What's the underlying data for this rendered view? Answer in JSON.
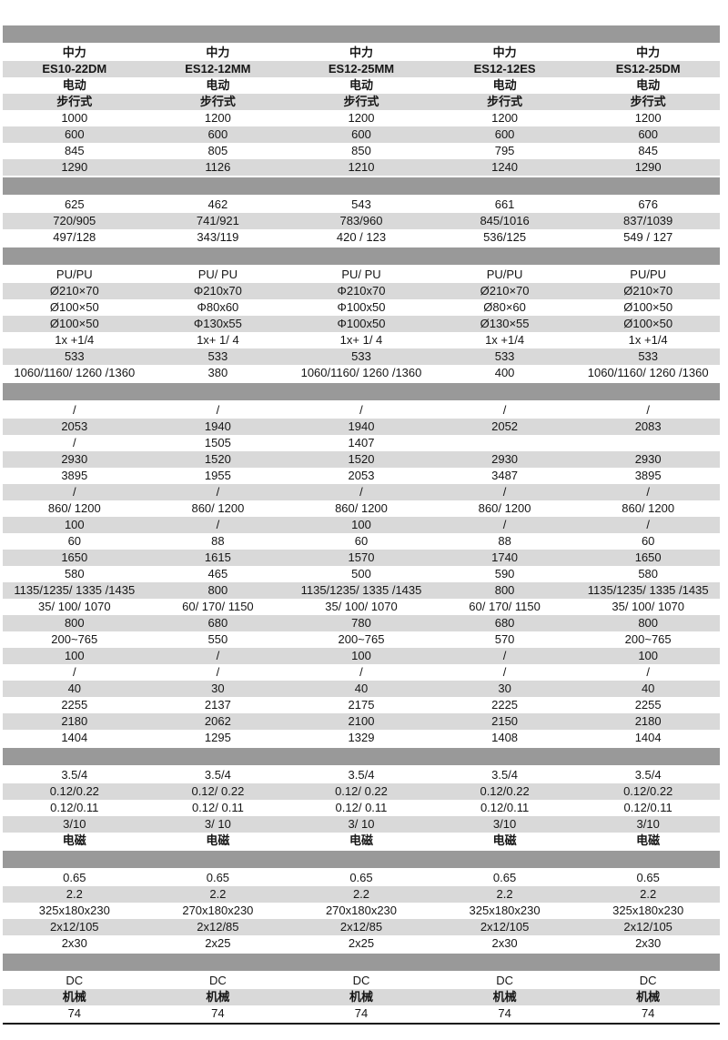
{
  "colors": {
    "separator_bar": "#999999",
    "shaded_row": "#d9d9d9",
    "white_row": "#ffffff",
    "text": "#161616",
    "bottom_line": "#111111"
  },
  "table": {
    "rows": [
      {
        "sep": true
      },
      {
        "bold": true,
        "cells": [
          "中力",
          "中力",
          "中力",
          "中力",
          "中力"
        ]
      },
      {
        "bold": true,
        "cells": [
          "ES10-22DM",
          "ES12-12MM",
          "ES12-25MM",
          "ES12-12ES",
          "ES12-25DM"
        ]
      },
      {
        "bold": true,
        "cells": [
          "电动",
          "电动",
          "电动",
          "电动",
          "电动"
        ]
      },
      {
        "bold": true,
        "cells": [
          "步行式",
          "步行式",
          "步行式",
          "步行式",
          "步行式"
        ]
      },
      {
        "cells": [
          "1000",
          "1200",
          "1200",
          "1200",
          "1200"
        ]
      },
      {
        "cells": [
          "600",
          "600",
          "600",
          "600",
          "600"
        ]
      },
      {
        "cells": [
          "845",
          "805",
          "850",
          "795",
          "845"
        ]
      },
      {
        "cells": [
          "1290",
          "1126",
          "1210",
          "1240",
          "1290"
        ]
      },
      {
        "sep": true
      },
      {
        "cells": [
          "625",
          "462",
          "543",
          "661",
          "676"
        ]
      },
      {
        "cells": [
          "720/905",
          "741/921",
          "783/960",
          "845/1016",
          "837/1039"
        ]
      },
      {
        "cells": [
          "497/128",
          "343/119",
          "420 / 123",
          "536/125",
          "549 / 127"
        ]
      },
      {
        "sep": true
      },
      {
        "cells": [
          "PU/PU",
          "PU/ PU",
          "PU/ PU",
          "PU/PU",
          "PU/PU"
        ]
      },
      {
        "cells": [
          "Ø210×70",
          "Φ210x70",
          "Φ210x70",
          "Ø210×70",
          "Ø210×70"
        ]
      },
      {
        "cells": [
          "Ø100×50",
          "Φ80x60",
          "Φ100x50",
          "Ø80×60",
          "Ø100×50"
        ]
      },
      {
        "cells": [
          "Ø100×50",
          "Φ130x55",
          "Φ100x50",
          "Ø130×55",
          "Ø100×50"
        ]
      },
      {
        "cells": [
          "1x +1/4",
          "1x+ 1/ 4",
          "1x+ 1/ 4",
          "1x +1/4",
          "1x +1/4"
        ]
      },
      {
        "cells": [
          "533",
          "533",
          "533",
          "533",
          "533"
        ]
      },
      {
        "cells": [
          "1060/1160/ 1260 /1360",
          "380",
          "1060/1160/ 1260 /1360",
          "400",
          "1060/1160/ 1260 /1360"
        ]
      },
      {
        "sep": true
      },
      {
        "cells": [
          "/",
          "/",
          "/",
          "/",
          "/"
        ]
      },
      {
        "cells": [
          "2053",
          "1940",
          "1940",
          "2052",
          "2083"
        ]
      },
      {
        "cells": [
          "/",
          "1505",
          "1407",
          "",
          ""
        ]
      },
      {
        "cells": [
          "2930",
          "1520",
          "1520",
          "2930",
          "2930"
        ]
      },
      {
        "cells": [
          "3895",
          "1955",
          "2053",
          "3487",
          "3895"
        ]
      },
      {
        "cells": [
          "/",
          "/",
          "/",
          "/",
          "/"
        ]
      },
      {
        "cells": [
          "860/ 1200",
          "860/ 1200",
          "860/ 1200",
          "860/ 1200",
          "860/ 1200"
        ]
      },
      {
        "cells": [
          "100",
          "/",
          "100",
          "/",
          "/"
        ]
      },
      {
        "cells": [
          "60",
          "88",
          "60",
          "88",
          "60"
        ]
      },
      {
        "cells": [
          "1650",
          "1615",
          "1570",
          "1740",
          "1650"
        ]
      },
      {
        "cells": [
          "580",
          "465",
          "500",
          "590",
          "580"
        ]
      },
      {
        "cells": [
          "1135/1235/ 1335 /1435",
          "800",
          "1135/1235/ 1335 /1435",
          "800",
          "1135/1235/ 1335 /1435"
        ]
      },
      {
        "cells": [
          "35/ 100/ 1070",
          "60/ 170/ 1150",
          "35/ 100/ 1070",
          "60/ 170/ 1150",
          "35/ 100/ 1070"
        ]
      },
      {
        "cells": [
          "800",
          "680",
          "780",
          "680",
          "800"
        ]
      },
      {
        "cells": [
          "200~765",
          "550",
          "200~765",
          "570",
          "200~765"
        ]
      },
      {
        "cells": [
          "100",
          "/",
          "100",
          "/",
          "100"
        ]
      },
      {
        "cells": [
          "/",
          "/",
          "/",
          "/",
          "/"
        ]
      },
      {
        "cells": [
          "40",
          "30",
          "40",
          "30",
          "40"
        ]
      },
      {
        "cells": [
          "2255",
          "2137",
          "2175",
          "2225",
          "2255"
        ]
      },
      {
        "cells": [
          "2180",
          "2062",
          "2100",
          "2150",
          "2180"
        ]
      },
      {
        "cells": [
          "1404",
          "1295",
          "1329",
          "1408",
          "1404"
        ]
      },
      {
        "sep": true
      },
      {
        "cells": [
          "3.5/4",
          "3.5/4",
          "3.5/4",
          "3.5/4",
          "3.5/4"
        ]
      },
      {
        "cells": [
          "0.12/0.22",
          "0.12/ 0.22",
          "0.12/ 0.22",
          "0.12/0.22",
          "0.12/0.22"
        ]
      },
      {
        "cells": [
          "0.12/0.11",
          "0.12/ 0.11",
          "0.12/ 0.11",
          "0.12/0.11",
          "0.12/0.11"
        ]
      },
      {
        "cells": [
          "3/10",
          "3/ 10",
          "3/ 10",
          "3/10",
          "3/10"
        ]
      },
      {
        "bold": true,
        "cells": [
          "电磁",
          "电磁",
          "电磁",
          "电磁",
          "电磁"
        ]
      },
      {
        "sep": true
      },
      {
        "cells": [
          "0.65",
          "0.65",
          "0.65",
          "0.65",
          "0.65"
        ]
      },
      {
        "cells": [
          "2.2",
          "2.2",
          "2.2",
          "2.2",
          "2.2"
        ]
      },
      {
        "cells": [
          "325x180x230",
          "270x180x230",
          "270x180x230",
          "325x180x230",
          "325x180x230"
        ]
      },
      {
        "cells": [
          "2x12/105",
          "2x12/85",
          "2x12/85",
          "2x12/105",
          "2x12/105"
        ]
      },
      {
        "cells": [
          "2x30",
          "2x25",
          "2x25",
          "2x30",
          "2x30"
        ]
      },
      {
        "sep": true
      },
      {
        "cells": [
          "DC",
          "DC",
          "DC",
          "DC",
          "DC"
        ]
      },
      {
        "bold": true,
        "cells": [
          "机械",
          "机械",
          "机械",
          "机械",
          "机械"
        ]
      },
      {
        "cells": [
          "74",
          "74",
          "74",
          "74",
          "74"
        ]
      }
    ]
  }
}
